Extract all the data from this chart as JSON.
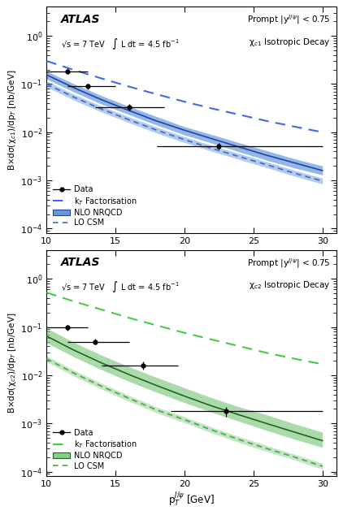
{
  "panel1": {
    "ylabel": "B×dσ(χ$_{c1}$)/dp$_T$ [nb/GeV]",
    "info_left": "√s = 7 TeV   ∫ L dt = 4.5 fb$^{-1}$",
    "info_right": "Prompt |y$^{J/\\psi}$| < 0.75\nχ$_{c1}$ Isotropic Decay",
    "data_x": [
      11.5,
      13.0,
      16.0,
      22.5
    ],
    "data_y": [
      0.185,
      0.09,
      0.033,
      0.0052
    ],
    "data_xerr_lo": [
      1.5,
      1.5,
      2.5,
      4.5
    ],
    "data_xerr_hi": [
      1.5,
      2.0,
      2.5,
      7.5
    ],
    "data_yerr_lo": [
      0.025,
      0.012,
      0.005,
      0.0008
    ],
    "data_yerr_hi": [
      0.025,
      0.012,
      0.005,
      0.0008
    ],
    "nlo_x": [
      10,
      12,
      14,
      16,
      18,
      20,
      22,
      24,
      26,
      28,
      30
    ],
    "nlo_y": [
      0.155,
      0.083,
      0.047,
      0.028,
      0.017,
      0.011,
      0.0073,
      0.0049,
      0.0033,
      0.0023,
      0.0016
    ],
    "nlo_y_hi": [
      0.185,
      0.1,
      0.057,
      0.034,
      0.021,
      0.013,
      0.0089,
      0.006,
      0.0041,
      0.0028,
      0.002
    ],
    "nlo_y_lo": [
      0.127,
      0.068,
      0.038,
      0.023,
      0.014,
      0.0088,
      0.0059,
      0.0039,
      0.0026,
      0.0018,
      0.0013
    ],
    "lo_csm_x": [
      10,
      12,
      14,
      16,
      18,
      20,
      22,
      24,
      26,
      28,
      30
    ],
    "lo_csm_y": [
      0.1,
      0.053,
      0.03,
      0.018,
      0.011,
      0.007,
      0.0046,
      0.0031,
      0.0021,
      0.0014,
      0.00097
    ],
    "kt_x": [
      10,
      12,
      14,
      16,
      18,
      20,
      22,
      24,
      26,
      28,
      30
    ],
    "kt_y": [
      0.3,
      0.195,
      0.13,
      0.088,
      0.061,
      0.043,
      0.031,
      0.023,
      0.017,
      0.013,
      0.01
    ],
    "color_nlo_fill": "#6699dd",
    "color_nlo_line": "#2244aa",
    "color_lo_csm": "#4466cc",
    "color_kt": "#4466ee",
    "ylim": [
      8e-05,
      4.0
    ],
    "xlim": [
      10,
      31
    ]
  },
  "panel2": {
    "ylabel": "B×dσ(χ$_{c2}$)/dp$_T$ [nb/GeV]",
    "info_left": "√s = 7 TeV   ∫ L dt = 4.5 fb$^{-1}$",
    "info_right": "Prompt |y$^{J/\\psi}$| < 0.75\nχ$_{c2}$ Isotropic Decay",
    "data_x": [
      11.5,
      13.5,
      17.0,
      23.0
    ],
    "data_y": [
      0.097,
      0.05,
      0.016,
      0.0018
    ],
    "data_xerr_lo": [
      1.5,
      2.0,
      3.0,
      4.0
    ],
    "data_xerr_hi": [
      1.5,
      2.5,
      2.5,
      7.0
    ],
    "data_yerr_lo": [
      0.013,
      0.007,
      0.003,
      0.0004
    ],
    "data_yerr_hi": [
      0.013,
      0.007,
      0.003,
      0.0004
    ],
    "nlo_x": [
      10,
      12,
      14,
      16,
      18,
      20,
      22,
      24,
      26,
      28,
      30
    ],
    "nlo_y": [
      0.065,
      0.033,
      0.018,
      0.0103,
      0.0061,
      0.0037,
      0.0023,
      0.0015,
      0.00099,
      0.00066,
      0.00044
    ],
    "nlo_y_hi": [
      0.095,
      0.048,
      0.026,
      0.015,
      0.009,
      0.0055,
      0.0034,
      0.0022,
      0.0015,
      0.00098,
      0.00066
    ],
    "nlo_y_lo": [
      0.047,
      0.024,
      0.013,
      0.0074,
      0.0044,
      0.0027,
      0.0017,
      0.0011,
      0.00071,
      0.00047,
      0.00032
    ],
    "lo_csm_x": [
      10,
      12,
      14,
      16,
      18,
      20,
      22,
      24,
      26,
      28,
      30
    ],
    "lo_csm_y": [
      0.022,
      0.011,
      0.0059,
      0.0033,
      0.0019,
      0.0012,
      0.00073,
      0.00046,
      0.0003,
      0.0002,
      0.00013
    ],
    "kt_x": [
      10,
      12,
      14,
      16,
      18,
      20,
      22,
      24,
      26,
      28,
      30
    ],
    "kt_y": [
      0.52,
      0.34,
      0.23,
      0.155,
      0.108,
      0.076,
      0.055,
      0.04,
      0.029,
      0.022,
      0.017
    ],
    "color_nlo_fill": "#88cc88",
    "color_nlo_line": "#226622",
    "color_lo_csm": "#44aa44",
    "color_kt": "#44cc44",
    "ylim": [
      8e-05,
      4.0
    ],
    "xlim": [
      10,
      31
    ]
  },
  "xlabel": "p$_T^{J/\\psi}$ [GeV]"
}
